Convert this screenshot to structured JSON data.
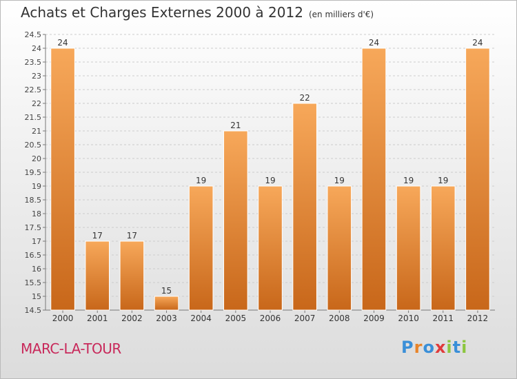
{
  "header": {
    "title": "Achats et Charges Externes 2000 à 2012",
    "unit": "(en milliers d'€)"
  },
  "footer": {
    "place": "MARC-LA-TOUR",
    "logo_text": "Proxiti",
    "logo_letters": [
      "P",
      "r",
      "o",
      "x",
      "i",
      "t",
      "i"
    ],
    "logo_colors": [
      "#3a8fd8",
      "#e8842a",
      "#3a8fd8",
      "#e03b3b",
      "#8cc63f",
      "#3a8fd8",
      "#8cc63f"
    ]
  },
  "colors": {
    "bar_light": "#f7a85a",
    "bar_dark": "#c8671a",
    "grid": "#cccccc",
    "place": "#c8285a"
  },
  "chart_data": {
    "type": "bar",
    "title": "Achats et Charges Externes 2000 à 2012",
    "categories": [
      "2000",
      "2001",
      "2002",
      "2003",
      "2004",
      "2005",
      "2006",
      "2007",
      "2008",
      "2009",
      "2010",
      "2011",
      "2012"
    ],
    "values": [
      24,
      17,
      17,
      15,
      19,
      21,
      19,
      22,
      19,
      24,
      19,
      19,
      24
    ],
    "ylim": [
      14.5,
      24.5
    ],
    "yticks": [
      "14.5",
      "15",
      "15.5",
      "16",
      "16.5",
      "17",
      "17.5",
      "18",
      "18.5",
      "19",
      "19.5",
      "20",
      "20.5",
      "21",
      "21.5",
      "22",
      "22.5",
      "23",
      "23.5",
      "24",
      "24.5"
    ],
    "grid": true,
    "xlabel": "",
    "ylabel": ""
  }
}
